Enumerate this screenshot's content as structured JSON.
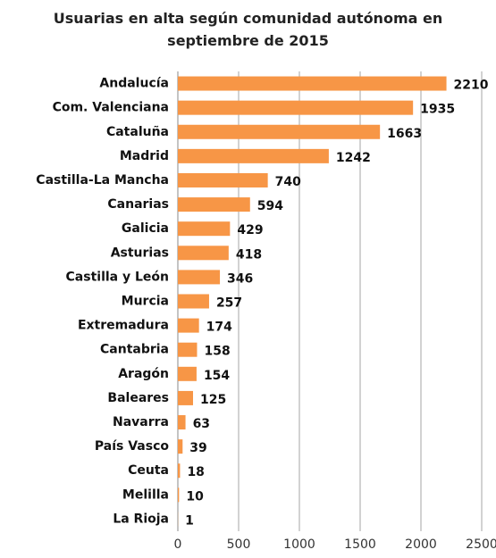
{
  "chart_data": {
    "type": "bar",
    "orientation": "horizontal",
    "title": "Usuarias en alta según comunidad autónoma en septiembre de 2015",
    "categories": [
      "Andalucía",
      "Com. Valenciana",
      "Cataluña",
      "Madrid",
      "Castilla-La Mancha",
      "Canarias",
      "Galicia",
      "Asturias",
      "Castilla y León",
      "Murcia",
      "Extremadura",
      "Cantabria",
      "Aragón",
      "Baleares",
      "Navarra",
      "País Vasco",
      "Ceuta",
      "Melilla",
      "La Rioja"
    ],
    "values": [
      2210,
      1935,
      1663,
      1242,
      740,
      594,
      429,
      418,
      346,
      257,
      174,
      158,
      154,
      125,
      63,
      39,
      18,
      10,
      1
    ],
    "color": "#f79646",
    "xlim": [
      0,
      2500
    ],
    "xticks": [
      0,
      500,
      1000,
      1500,
      2000,
      2500
    ],
    "grid": true
  }
}
